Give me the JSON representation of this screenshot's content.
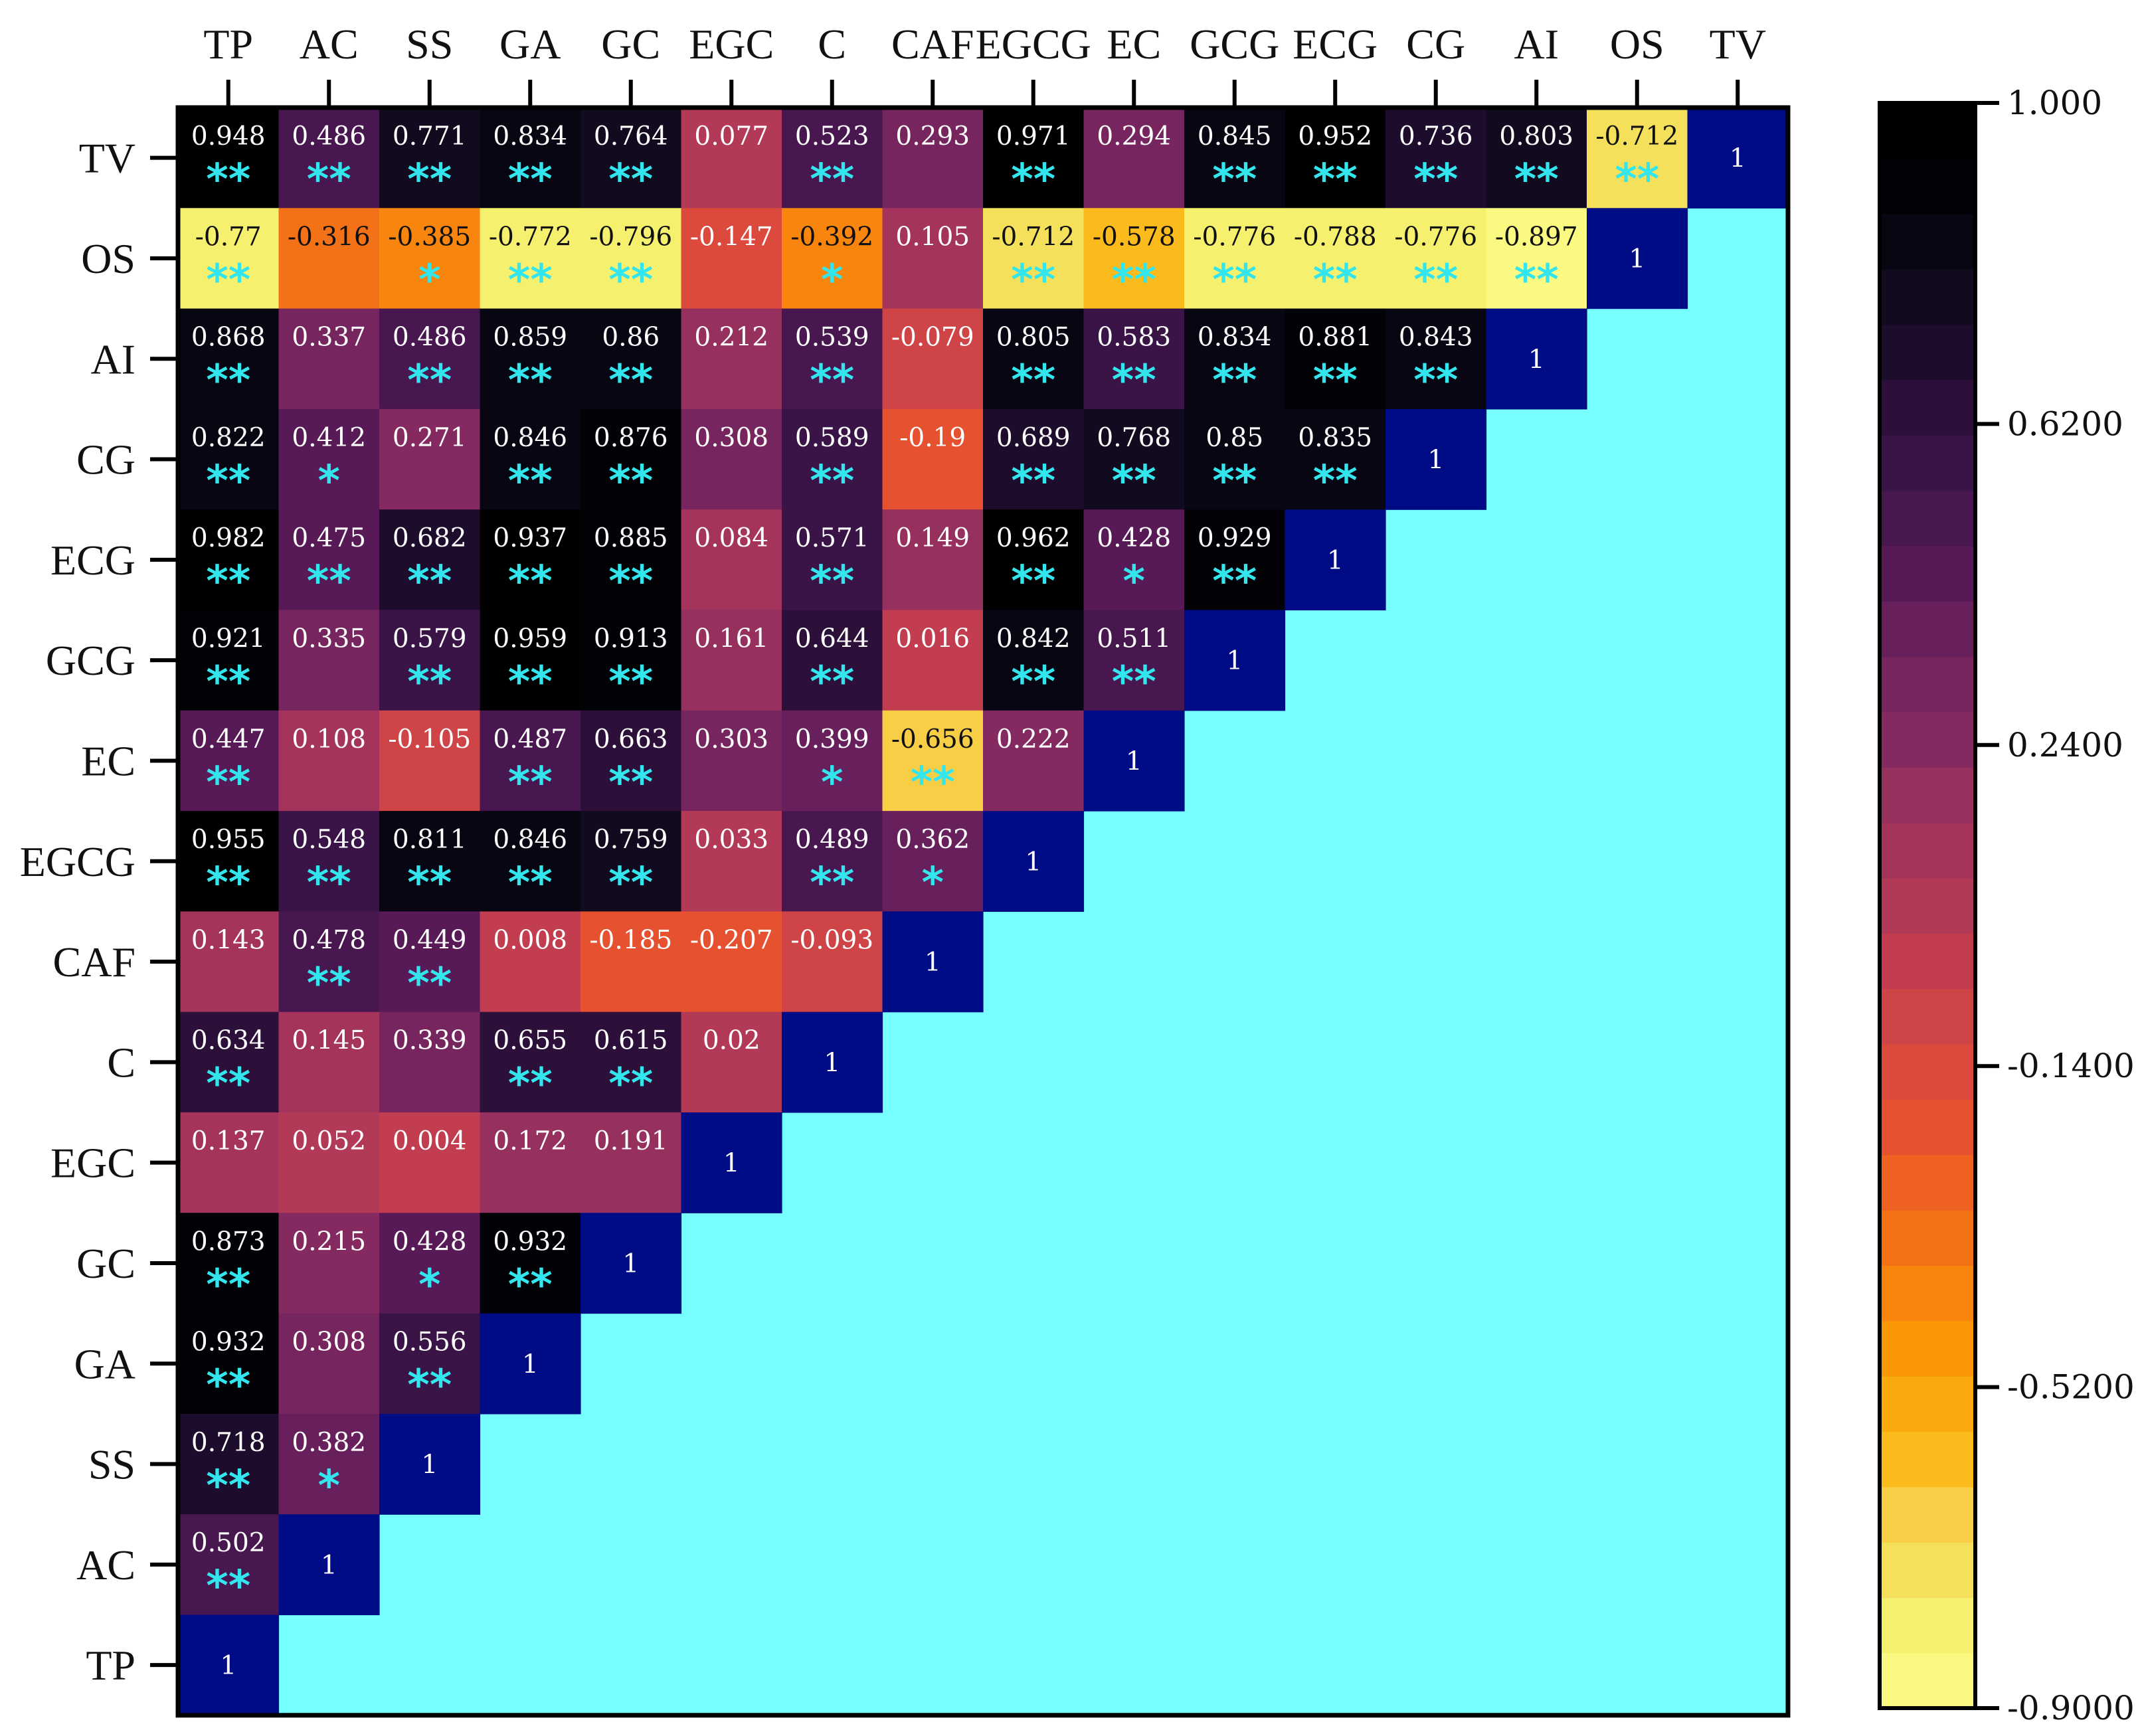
{
  "chart_data": {
    "type": "heatmap",
    "title": "",
    "xlabel": "",
    "ylabel": "",
    "x_labels": [
      "TP",
      "AC",
      "SS",
      "GA",
      "GC",
      "EGC",
      "C",
      "CAF",
      "EGCG",
      "EC",
      "GCG",
      "ECG",
      "CG",
      "AI",
      "OS",
      "TV"
    ],
    "y_labels": [
      "TV",
      "OS",
      "AI",
      "CG",
      "ECG",
      "GCG",
      "EC",
      "EGCG",
      "CAF",
      "C",
      "EGC",
      "GC",
      "GA",
      "SS",
      "AC",
      "TP"
    ],
    "rows": [
      {
        "label": "TV",
        "values": [
          0.948,
          0.486,
          0.771,
          0.834,
          0.764,
          0.077,
          0.523,
          0.293,
          0.971,
          0.294,
          0.845,
          0.952,
          0.736,
          0.803,
          -0.712,
          1
        ],
        "display": [
          "0.948",
          "0.486",
          "0.771",
          "0.834",
          "0.764",
          "0.077",
          "0.523",
          "0.293",
          "0.971",
          "0.294",
          "0.845",
          "0.952",
          "0.736",
          "0.803",
          "-0.712",
          "1"
        ],
        "sig": [
          "**",
          "**",
          "**",
          "**",
          "**",
          "",
          "**",
          "",
          "**",
          "",
          "**",
          "**",
          "**",
          "**",
          "**",
          ""
        ]
      },
      {
        "label": "OS",
        "values": [
          -0.77,
          -0.316,
          -0.385,
          -0.772,
          -0.796,
          -0.147,
          -0.392,
          0.105,
          -0.712,
          -0.578,
          -0.776,
          -0.788,
          -0.776,
          -0.897,
          1
        ],
        "display": [
          "-0.77",
          "-0.316",
          "-0.385",
          "-0.772",
          "-0.796",
          "-0.147",
          "-0.392",
          "0.105",
          "-0.712",
          "-0.578",
          "-0.776",
          "-0.788",
          "-0.776",
          "-0.897",
          "1"
        ],
        "sig": [
          "**",
          "",
          "*",
          "**",
          "**",
          "",
          "*",
          "",
          "**",
          "**",
          "**",
          "**",
          "**",
          "**",
          ""
        ]
      },
      {
        "label": "AI",
        "values": [
          0.868,
          0.337,
          0.486,
          0.859,
          0.86,
          0.212,
          0.539,
          -0.079,
          0.805,
          0.583,
          0.834,
          0.881,
          0.843,
          1
        ],
        "display": [
          "0.868",
          "0.337",
          "0.486",
          "0.859",
          "0.86",
          "0.212",
          "0.539",
          "-0.079",
          "0.805",
          "0.583",
          "0.834",
          "0.881",
          "0.843",
          "1"
        ],
        "sig": [
          "**",
          "",
          "**",
          "**",
          "**",
          "",
          "**",
          "",
          "**",
          "**",
          "**",
          "**",
          "**",
          ""
        ]
      },
      {
        "label": "CG",
        "values": [
          0.822,
          0.412,
          0.271,
          0.846,
          0.876,
          0.308,
          0.589,
          -0.19,
          0.689,
          0.768,
          0.85,
          0.835,
          1
        ],
        "display": [
          "0.822",
          "0.412",
          "0.271",
          "0.846",
          "0.876",
          "0.308",
          "0.589",
          "-0.19",
          "0.689",
          "0.768",
          "0.85",
          "0.835",
          "1"
        ],
        "sig": [
          "**",
          "*",
          "",
          "**",
          "**",
          "",
          "**",
          "",
          "**",
          "**",
          "**",
          "**",
          ""
        ]
      },
      {
        "label": "ECG",
        "values": [
          0.982,
          0.475,
          0.682,
          0.937,
          0.885,
          0.084,
          0.571,
          0.149,
          0.962,
          0.428,
          0.929,
          1
        ],
        "display": [
          "0.982",
          "0.475",
          "0.682",
          "0.937",
          "0.885",
          "0.084",
          "0.571",
          "0.149",
          "0.962",
          "0.428",
          "0.929",
          "1"
        ],
        "sig": [
          "**",
          "**",
          "**",
          "**",
          "**",
          "",
          "**",
          "",
          "**",
          "*",
          "**",
          ""
        ]
      },
      {
        "label": "GCG",
        "values": [
          0.921,
          0.335,
          0.579,
          0.959,
          0.913,
          0.161,
          0.644,
          0.016,
          0.842,
          0.511,
          1
        ],
        "display": [
          "0.921",
          "0.335",
          "0.579",
          "0.959",
          "0.913",
          "0.161",
          "0.644",
          "0.016",
          "0.842",
          "0.511",
          "1"
        ],
        "sig": [
          "**",
          "",
          "**",
          "**",
          "**",
          "",
          "**",
          "",
          "**",
          "**",
          ""
        ]
      },
      {
        "label": "EC",
        "values": [
          0.447,
          0.108,
          -0.105,
          0.487,
          0.663,
          0.303,
          0.399,
          -0.656,
          0.222,
          1
        ],
        "display": [
          "0.447",
          "0.108",
          "-0.105",
          "0.487",
          "0.663",
          "0.303",
          "0.399",
          "-0.656",
          "0.222",
          "1"
        ],
        "sig": [
          "**",
          "",
          "",
          "**",
          "**",
          "",
          "*",
          "**",
          "",
          ""
        ]
      },
      {
        "label": "EGCG",
        "values": [
          0.955,
          0.548,
          0.811,
          0.846,
          0.759,
          0.033,
          0.489,
          0.362,
          1
        ],
        "display": [
          "0.955",
          "0.548",
          "0.811",
          "0.846",
          "0.759",
          "0.033",
          "0.489",
          "0.362",
          "1"
        ],
        "sig": [
          "**",
          "**",
          "**",
          "**",
          "**",
          "",
          "**",
          "*",
          ""
        ]
      },
      {
        "label": "CAF",
        "values": [
          0.143,
          0.478,
          0.449,
          0.008,
          -0.185,
          -0.207,
          -0.093,
          1
        ],
        "display": [
          "0.143",
          "0.478",
          "0.449",
          "0.008",
          "-0.185",
          "-0.207",
          "-0.093",
          "1"
        ],
        "sig": [
          "",
          "**",
          "**",
          "",
          "",
          "",
          "",
          ""
        ]
      },
      {
        "label": "C",
        "values": [
          0.634,
          0.145,
          0.339,
          0.655,
          0.615,
          0.02,
          1
        ],
        "display": [
          "0.634",
          "0.145",
          "0.339",
          "0.655",
          "0.615",
          "0.02",
          "1"
        ],
        "sig": [
          "**",
          "",
          "",
          "**",
          "**",
          "",
          ""
        ]
      },
      {
        "label": "EGC",
        "values": [
          0.137,
          0.052,
          0.004,
          0.172,
          0.191,
          1
        ],
        "display": [
          "0.137",
          "0.052",
          "0.004",
          "0.172",
          "0.191",
          "1"
        ],
        "sig": [
          "",
          "",
          "",
          "",
          "",
          ""
        ]
      },
      {
        "label": "GC",
        "values": [
          0.873,
          0.215,
          0.428,
          0.932,
          1
        ],
        "display": [
          "0.873",
          "0.215",
          "0.428",
          "0.932",
          "1"
        ],
        "sig": [
          "**",
          "",
          "*",
          "**",
          ""
        ]
      },
      {
        "label": "GA",
        "values": [
          0.932,
          0.308,
          0.556,
          1
        ],
        "display": [
          "0.932",
          "0.308",
          "0.556",
          "1"
        ],
        "sig": [
          "**",
          "",
          "**",
          ""
        ]
      },
      {
        "label": "SS",
        "values": [
          0.718,
          0.382,
          1
        ],
        "display": [
          "0.718",
          "0.382",
          "1"
        ],
        "sig": [
          "**",
          "*",
          ""
        ]
      },
      {
        "label": "AC",
        "values": [
          0.502,
          1
        ],
        "display": [
          "0.502",
          "1"
        ],
        "sig": [
          "**",
          ""
        ]
      },
      {
        "label": "TP",
        "values": [
          1
        ],
        "display": [
          "1"
        ],
        "sig": [
          ""
        ]
      }
    ],
    "colorbar": {
      "min": -0.9,
      "max": 1.0,
      "levels": 30,
      "ticks": [
        "1.000",
        "0.6200",
        "0.2400",
        "-0.1400",
        "-0.5200",
        "-0.9000"
      ]
    },
    "colors": {
      "diagonal": "#000c85",
      "empty": "#77ffff",
      "significance": "#33e6ee",
      "colormap": [
        "#fafa82",
        "#f5f06e",
        "#f4e05a",
        "#f8ce46",
        "#fcbb1c",
        "#fbaa0e",
        "#fa9707",
        "#f8850d",
        "#f47217",
        "#ee6121",
        "#e65130",
        "#db4a3c",
        "#cf4446",
        "#c23d50",
        "#b33a57",
        "#a4345c",
        "#95305f",
        "#852a60",
        "#76255f",
        "#67205c",
        "#581a57",
        "#491750",
        "#3a1446",
        "#2c103a",
        "#1e0c2c",
        "#120a1e",
        "#080612",
        "#020106",
        "#000000"
      ]
    }
  }
}
